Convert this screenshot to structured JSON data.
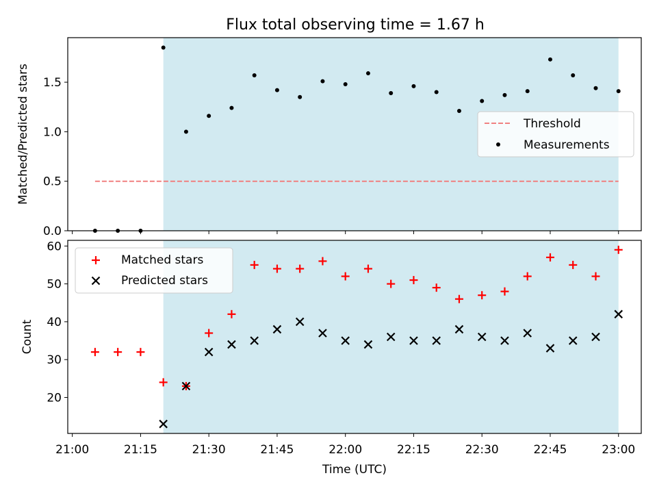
{
  "title": "Flux total observing time = 1.67 h",
  "colors": {
    "shade": "#add8e6",
    "threshold": "#f08080",
    "measurements": "#000000",
    "matched": "#ff0000",
    "predicted": "#000000"
  },
  "chart_data": [
    {
      "type": "scatter",
      "panel": "top",
      "ylabel": "Matched/Predicted stars",
      "xlabel": "",
      "ylim": [
        0,
        1.95
      ],
      "yticks": [
        "0.0",
        "0.5",
        "1.0",
        "1.5"
      ],
      "ytick_values": [
        0,
        0.5,
        1.0,
        1.5
      ],
      "legend_position": "center-right",
      "shaded_region": [
        "21:20",
        "23:00"
      ],
      "threshold": {
        "name": "Threshold",
        "value": 0.5,
        "x_start": "21:05",
        "x_end": "23:00",
        "style": "dashed"
      },
      "series": [
        {
          "name": "Measurements",
          "x": [
            "21:05",
            "21:10",
            "21:15",
            "21:20",
            "21:25",
            "21:30",
            "21:35",
            "21:40",
            "21:45",
            "21:50",
            "21:55",
            "22:00",
            "22:05",
            "22:10",
            "22:15",
            "22:20",
            "22:25",
            "22:30",
            "22:35",
            "22:40",
            "22:45",
            "22:50",
            "22:55",
            "23:00"
          ],
          "values": [
            0,
            0,
            0,
            1.85,
            1.0,
            1.16,
            1.24,
            1.57,
            1.42,
            1.35,
            1.51,
            1.48,
            1.59,
            1.39,
            1.46,
            1.4,
            1.21,
            1.31,
            1.37,
            1.41,
            1.73,
            1.57,
            1.44,
            1.41
          ]
        }
      ]
    },
    {
      "type": "scatter",
      "panel": "bottom",
      "ylabel": "Count",
      "xlabel": "Time (UTC)",
      "ylim": [
        10.5,
        61.5
      ],
      "yticks": [
        "20",
        "30",
        "40",
        "50",
        "60"
      ],
      "ytick_values": [
        20,
        30,
        40,
        50,
        60
      ],
      "xlim": [
        "20:59",
        "23:05"
      ],
      "xticks": [
        "21:00",
        "21:15",
        "21:30",
        "21:45",
        "22:00",
        "22:15",
        "22:30",
        "22:45",
        "23:00"
      ],
      "legend_position": "top-left",
      "shaded_region": [
        "21:20",
        "23:00"
      ],
      "series": [
        {
          "name": "Matched stars",
          "marker": "plus",
          "x": [
            "21:05",
            "21:10",
            "21:15",
            "21:20",
            "21:25",
            "21:30",
            "21:35",
            "21:40",
            "21:45",
            "21:50",
            "21:55",
            "22:00",
            "22:05",
            "22:10",
            "22:15",
            "22:20",
            "22:25",
            "22:30",
            "22:35",
            "22:40",
            "22:45",
            "22:50",
            "22:55",
            "23:00"
          ],
          "values": [
            32,
            32,
            32,
            24,
            23,
            37,
            42,
            55,
            54,
            54,
            56,
            52,
            54,
            50,
            51,
            49,
            46,
            47,
            48,
            52,
            57,
            55,
            52,
            59
          ]
        },
        {
          "name": "Predicted stars",
          "marker": "x",
          "x": [
            "21:20",
            "21:25",
            "21:30",
            "21:35",
            "21:40",
            "21:45",
            "21:50",
            "21:55",
            "22:00",
            "22:05",
            "22:10",
            "22:15",
            "22:20",
            "22:25",
            "22:30",
            "22:35",
            "22:40",
            "22:45",
            "22:50",
            "22:55",
            "23:00"
          ],
          "values": [
            13,
            23,
            32,
            34,
            35,
            38,
            40,
            37,
            35,
            34,
            36,
            35,
            35,
            38,
            36,
            35,
            37,
            33,
            35,
            36,
            42
          ]
        }
      ]
    }
  ]
}
